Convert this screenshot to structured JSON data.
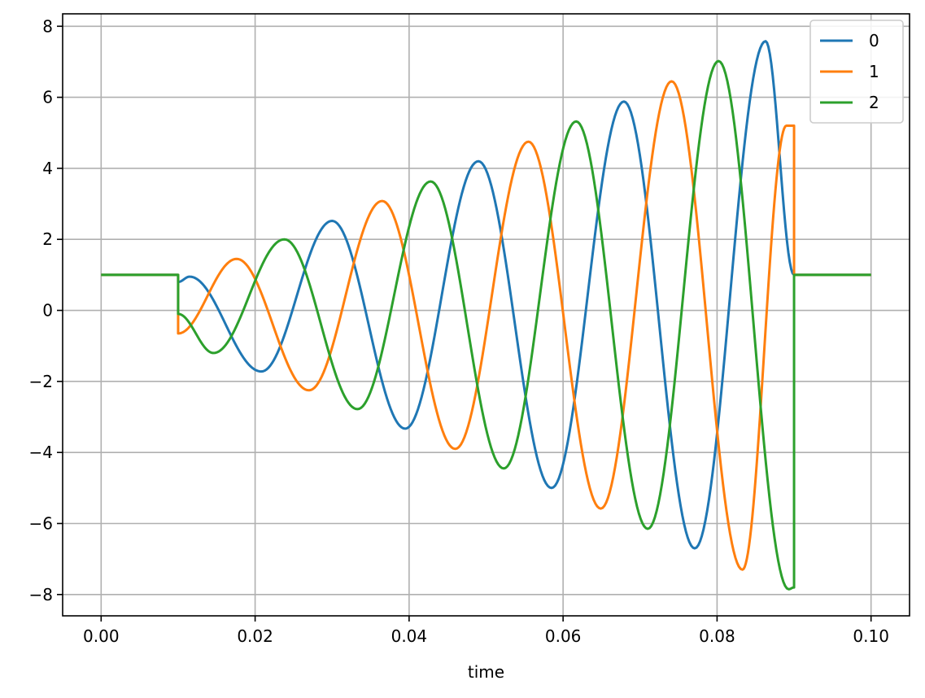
{
  "chart_data": {
    "type": "line",
    "title": "",
    "xlabel": "time",
    "ylabel": "",
    "xlim": [
      -0.005,
      0.105
    ],
    "ylim": [
      -8.6,
      8.35
    ],
    "xticks": [
      "0.00",
      "0.02",
      "0.04",
      "0.06",
      "0.08",
      "0.10"
    ],
    "xtick_values": [
      0.0,
      0.02,
      0.04,
      0.06,
      0.08,
      0.1
    ],
    "yticks": [
      "−8",
      "−6",
      "−4",
      "−2",
      "0",
      "2",
      "4",
      "6",
      "8"
    ],
    "ytick_values": [
      -8,
      -6,
      -4,
      -2,
      0,
      2,
      4,
      6,
      8
    ],
    "grid": true,
    "legend_position": "top-right",
    "series": [
      {
        "name": "0",
        "color": "#1f77b4",
        "x": [
          0.0,
          0.01,
          0.01,
          0.0115,
          0.0208,
          0.03,
          0.0395,
          0.049,
          0.0585,
          0.0679,
          0.0771,
          0.0863,
          0.09,
          0.09,
          0.1
        ],
        "y": [
          1.0,
          1.0,
          0.8,
          0.95,
          -1.72,
          2.52,
          -3.33,
          4.2,
          -5.0,
          5.88,
          -6.7,
          7.58,
          1.0,
          1.0,
          1.0
        ]
      },
      {
        "name": "1",
        "color": "#ff7f0e",
        "x": [
          0.0,
          0.01,
          0.01,
          0.0176,
          0.027,
          0.0365,
          0.046,
          0.0555,
          0.0649,
          0.0741,
          0.0833,
          0.089,
          0.09,
          0.09,
          0.1
        ],
        "y": [
          1.0,
          1.0,
          -0.65,
          1.45,
          -2.25,
          3.08,
          -3.9,
          4.75,
          -5.58,
          6.45,
          -7.3,
          5.2,
          5.2,
          1.0,
          1.0
        ]
      },
      {
        "name": "2",
        "color": "#2ca02c",
        "x": [
          0.0,
          0.01,
          0.01,
          0.0146,
          0.0238,
          0.0333,
          0.0428,
          0.0523,
          0.0617,
          0.071,
          0.0802,
          0.0893,
          0.09,
          0.09,
          0.1
        ],
        "y": [
          1.0,
          1.0,
          -0.1,
          -1.2,
          2.0,
          -2.78,
          3.63,
          -4.45,
          5.32,
          -6.15,
          7.02,
          -7.85,
          -7.8,
          1.0,
          1.0
        ]
      }
    ]
  }
}
